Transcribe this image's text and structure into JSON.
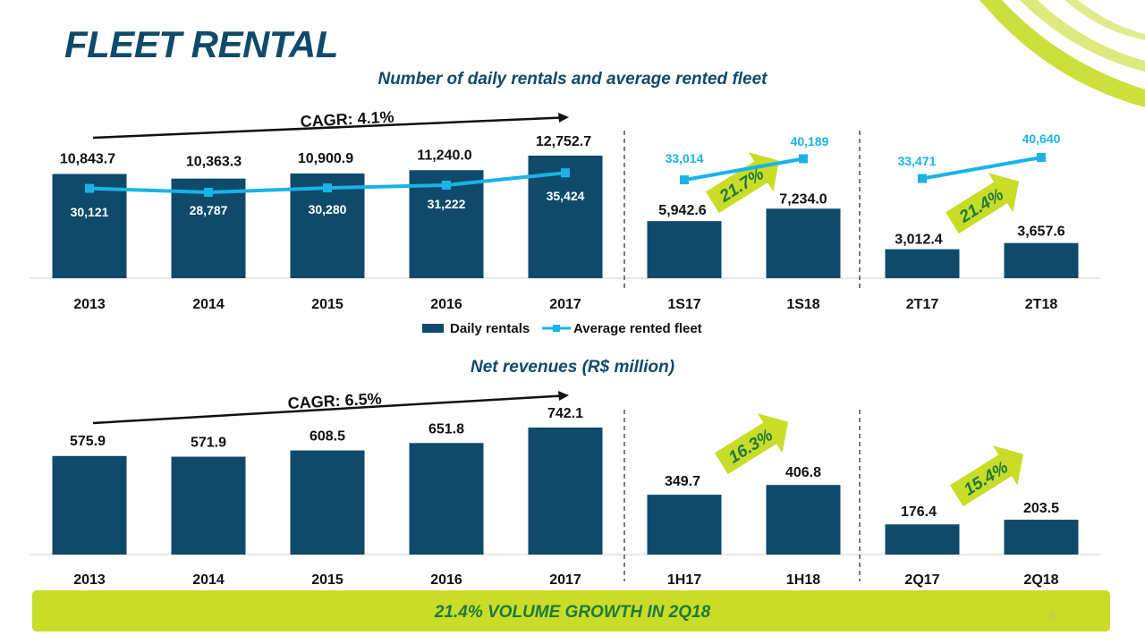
{
  "title": "FLEET RENTAL",
  "colors": {
    "title": "#0f4a6b",
    "bar": "#0f4a6b",
    "line": "#19b3e6",
    "accent_green": "#c8dc28",
    "arrow_text": "#1c7a3d",
    "banner": "#c8dc28"
  },
  "footer": {
    "banner_text": "21.4% VOLUME GROWTH IN 2Q18",
    "page_number": "8"
  },
  "chart_data": [
    {
      "type": "bar",
      "title": "Number of daily rentals and average rented fleet",
      "categories": [
        "2013",
        "2014",
        "2015",
        "2016",
        "2017",
        "1S17",
        "1S18",
        "2T17",
        "2T18"
      ],
      "series": [
        {
          "name": "Daily rentals",
          "type": "bar",
          "values": [
            10843.7,
            10363.3,
            10900.9,
            11240.0,
            12752.7,
            5942.6,
            7234.0,
            3012.4,
            3657.6
          ],
          "labels": [
            "10,843.7",
            "10,363.3",
            "10,900.9",
            "11,240.0",
            "12,752.7",
            "5,942.6",
            "7,234.0",
            "3,012.4",
            "3,657.6"
          ]
        },
        {
          "name": "Average rented fleet",
          "type": "line",
          "values": [
            30121,
            28787,
            30280,
            31222,
            35424,
            33014,
            40189,
            33471,
            40640
          ],
          "labels": [
            "30,121",
            "28,787",
            "30,280",
            "31,222",
            "35,424",
            "33,014",
            "40,189",
            "33,471",
            "40,640"
          ]
        }
      ],
      "legend": {
        "placement": "bottom-center"
      },
      "annotations": {
        "cagr": "CAGR: 4.1%",
        "growth_1": "21.7%",
        "growth_2": "21.4%"
      }
    },
    {
      "type": "bar",
      "title": "Net revenues (R$ million)",
      "categories": [
        "2013",
        "2014",
        "2015",
        "2016",
        "2017",
        "1H17",
        "1H18",
        "2Q17",
        "2Q18"
      ],
      "series": [
        {
          "values": [
            575.9,
            571.9,
            608.5,
            651.8,
            742.1,
            349.7,
            406.8,
            176.4,
            203.5
          ],
          "labels": [
            "575.9",
            "571.9",
            "608.5",
            "651.8",
            "742.1",
            "349.7",
            "406.8",
            "176.4",
            "203.5"
          ]
        }
      ],
      "annotations": {
        "cagr": "CAGR: 6.5%",
        "growth_1": "16.3%",
        "growth_2": "15.4%"
      }
    }
  ]
}
